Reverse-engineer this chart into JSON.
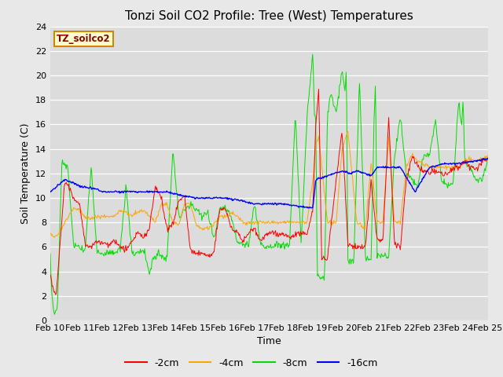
{
  "title": "Tonzi Soil CO2 Profile: Tree (West) Temperatures",
  "xlabel": "Time",
  "ylabel": "Soil Temperature (C)",
  "ylim": [
    0,
    24
  ],
  "xlim": [
    0,
    15
  ],
  "legend_label": "TZ_soilco2",
  "depth_labels": [
    "-2cm",
    "-4cm",
    "-8cm",
    "-16cm"
  ],
  "depth_colors": [
    "#ff0000",
    "#ffa500",
    "#00dd00",
    "#0000ff"
  ],
  "x_tick_labels": [
    "Feb 10",
    "Feb 11",
    "Feb 12",
    "Feb 13",
    "Feb 14",
    "Feb 15",
    "Feb 16",
    "Feb 17",
    "Feb 18",
    "Feb 19",
    "Feb 20",
    "Feb 21",
    "Feb 22",
    "Feb 23",
    "Feb 24",
    "Feb 25"
  ],
  "fig_bg": "#e8e8e8",
  "plot_bg": "#dcdcdc",
  "title_fontsize": 11,
  "axis_fontsize": 9,
  "tick_fontsize": 8,
  "legend_fontsize": 9,
  "red_kx": [
    0,
    0.1,
    0.2,
    0.5,
    0.8,
    1.0,
    1.2,
    1.4,
    1.6,
    1.8,
    2.0,
    2.2,
    2.4,
    2.6,
    2.8,
    3.0,
    3.2,
    3.4,
    3.6,
    3.8,
    4.0,
    4.2,
    4.4,
    4.6,
    4.8,
    5.0,
    5.2,
    5.4,
    5.6,
    5.8,
    6.0,
    6.2,
    6.4,
    6.6,
    6.8,
    7.0,
    7.2,
    7.4,
    7.6,
    7.8,
    8.0,
    8.2,
    8.4,
    8.6,
    8.8,
    9.0,
    9.1,
    9.2,
    9.3,
    9.5,
    9.8,
    10.0,
    10.2,
    10.5,
    10.8,
    11.0,
    11.2,
    11.4,
    11.6,
    11.8,
    12.0,
    12.2,
    12.4,
    12.6,
    12.8,
    13.0,
    13.2,
    13.4,
    13.6,
    13.8,
    14.0,
    14.2,
    14.4,
    14.6,
    14.8,
    15.0
  ],
  "red_ky": [
    3.7,
    2.5,
    2.0,
    11.5,
    10.0,
    9.5,
    6.2,
    6.0,
    6.5,
    6.3,
    6.2,
    6.5,
    6.0,
    5.8,
    6.5,
    7.2,
    6.8,
    7.5,
    11.0,
    10.0,
    7.5,
    7.8,
    9.8,
    10.2,
    5.8,
    5.5,
    5.5,
    5.3,
    5.5,
    9.0,
    9.2,
    7.5,
    7.2,
    6.5,
    7.2,
    7.5,
    6.5,
    7.0,
    7.2,
    7.0,
    7.0,
    6.8,
    7.0,
    7.2,
    7.0,
    9.0,
    16.0,
    19.0,
    5.0,
    5.0,
    11.5,
    15.5,
    6.2,
    6.0,
    6.0,
    11.5,
    6.5,
    6.5,
    16.5,
    6.2,
    6.0,
    11.5,
    13.5,
    12.5,
    12.2,
    12.0,
    12.2,
    12.0,
    12.0,
    12.5,
    12.5,
    13.0,
    12.5,
    12.5,
    13.0,
    13.2
  ],
  "orange_kx": [
    0,
    0.2,
    0.5,
    0.8,
    1.0,
    1.2,
    1.4,
    1.6,
    1.8,
    2.0,
    2.2,
    2.4,
    2.6,
    2.8,
    3.0,
    3.2,
    3.4,
    3.6,
    3.8,
    4.0,
    4.2,
    4.4,
    4.6,
    4.8,
    5.0,
    5.2,
    5.4,
    5.6,
    5.8,
    6.0,
    6.2,
    6.4,
    6.6,
    6.8,
    7.0,
    7.2,
    7.4,
    7.6,
    7.8,
    8.0,
    8.2,
    8.4,
    8.6,
    8.8,
    9.0,
    9.1,
    9.2,
    9.5,
    9.8,
    10.0,
    10.2,
    10.5,
    10.8,
    11.0,
    11.2,
    11.4,
    11.6,
    11.8,
    12.0,
    12.2,
    12.4,
    12.6,
    12.8,
    13.0,
    13.2,
    13.4,
    13.6,
    13.8,
    14.0,
    14.2,
    14.4,
    14.6,
    14.8,
    15.0
  ],
  "orange_ky": [
    7.0,
    6.8,
    8.0,
    9.2,
    9.0,
    8.5,
    8.3,
    8.5,
    8.5,
    8.5,
    8.5,
    9.0,
    8.8,
    8.5,
    8.8,
    9.0,
    8.5,
    8.0,
    9.5,
    9.5,
    8.0,
    7.8,
    9.5,
    9.5,
    7.8,
    7.5,
    7.5,
    7.8,
    8.5,
    8.5,
    8.8,
    8.5,
    8.0,
    8.0,
    8.0,
    8.0,
    8.0,
    8.0,
    8.0,
    8.0,
    8.0,
    8.0,
    8.0,
    8.0,
    11.5,
    14.5,
    15.0,
    8.0,
    8.0,
    14.0,
    15.5,
    8.0,
    7.5,
    13.0,
    8.0,
    8.0,
    15.0,
    8.0,
    8.0,
    12.5,
    13.5,
    13.0,
    12.8,
    12.5,
    12.5,
    12.5,
    12.5,
    12.5,
    12.5,
    13.0,
    13.2,
    13.0,
    13.2,
    13.5
  ],
  "green_kx": [
    0,
    0.05,
    0.12,
    0.18,
    0.25,
    0.4,
    0.6,
    0.8,
    1.0,
    1.2,
    1.4,
    1.6,
    1.8,
    2.0,
    2.2,
    2.4,
    2.6,
    2.8,
    3.0,
    3.2,
    3.4,
    3.5,
    3.7,
    3.9,
    4.0,
    4.2,
    4.4,
    4.6,
    4.8,
    5.0,
    5.2,
    5.4,
    5.6,
    5.8,
    6.0,
    6.2,
    6.4,
    6.6,
    6.8,
    7.0,
    7.2,
    7.4,
    7.6,
    7.8,
    8.0,
    8.2,
    8.4,
    8.6,
    8.8,
    9.0,
    9.05,
    9.1,
    9.15,
    9.25,
    9.4,
    9.5,
    9.6,
    9.8,
    10.0,
    10.1,
    10.15,
    10.2,
    10.4,
    10.6,
    10.8,
    11.0,
    11.1,
    11.15,
    11.2,
    11.4,
    11.6,
    11.8,
    12.0,
    12.2,
    12.4,
    12.6,
    12.8,
    13.0,
    13.2,
    13.4,
    13.6,
    13.8,
    14.0,
    14.1,
    14.15,
    14.2,
    14.4,
    14.6,
    14.8,
    15.0
  ],
  "green_ky": [
    5.5,
    2.0,
    0.8,
    0.5,
    1.5,
    13.0,
    12.5,
    6.2,
    6.0,
    5.8,
    12.5,
    5.5,
    5.5,
    5.5,
    5.5,
    5.8,
    11.0,
    5.5,
    5.5,
    5.8,
    3.8,
    5.0,
    5.5,
    5.0,
    5.0,
    14.0,
    8.5,
    9.0,
    9.5,
    9.0,
    8.5,
    9.0,
    6.5,
    9.0,
    9.2,
    8.5,
    6.5,
    6.2,
    6.2,
    9.5,
    6.2,
    6.0,
    6.0,
    6.2,
    6.0,
    6.2,
    17.0,
    6.2,
    16.5,
    22.0,
    17.0,
    16.5,
    3.5,
    3.5,
    3.5,
    16.5,
    18.5,
    17.0,
    20.5,
    18.5,
    20.8,
    4.8,
    4.8,
    19.5,
    5.0,
    5.0,
    16.5,
    19.5,
    5.3,
    5.3,
    5.2,
    13.5,
    16.5,
    12.0,
    11.5,
    11.0,
    13.5,
    13.5,
    16.5,
    11.5,
    11.0,
    11.0,
    17.8,
    16.0,
    18.0,
    13.0,
    12.5,
    11.5,
    11.5,
    13.0
  ],
  "blue_kx": [
    0,
    0.5,
    1.0,
    1.3,
    1.5,
    1.8,
    2.0,
    2.5,
    3.0,
    3.5,
    4.0,
    4.5,
    5.0,
    5.5,
    6.0,
    6.5,
    7.0,
    7.5,
    8.0,
    8.5,
    9.0,
    9.1,
    9.5,
    10.0,
    10.3,
    10.5,
    10.8,
    11.0,
    11.2,
    11.5,
    12.0,
    12.5,
    13.0,
    13.5,
    14.0,
    14.5,
    15.0
  ],
  "blue_ky": [
    10.5,
    11.5,
    11.0,
    10.8,
    10.8,
    10.5,
    10.5,
    10.5,
    10.5,
    10.5,
    10.5,
    10.2,
    10.0,
    10.0,
    10.0,
    9.8,
    9.5,
    9.5,
    9.5,
    9.3,
    9.2,
    11.5,
    11.8,
    12.2,
    12.0,
    12.2,
    12.0,
    11.8,
    12.5,
    12.5,
    12.5,
    10.5,
    12.5,
    12.8,
    12.8,
    13.0,
    13.2
  ]
}
